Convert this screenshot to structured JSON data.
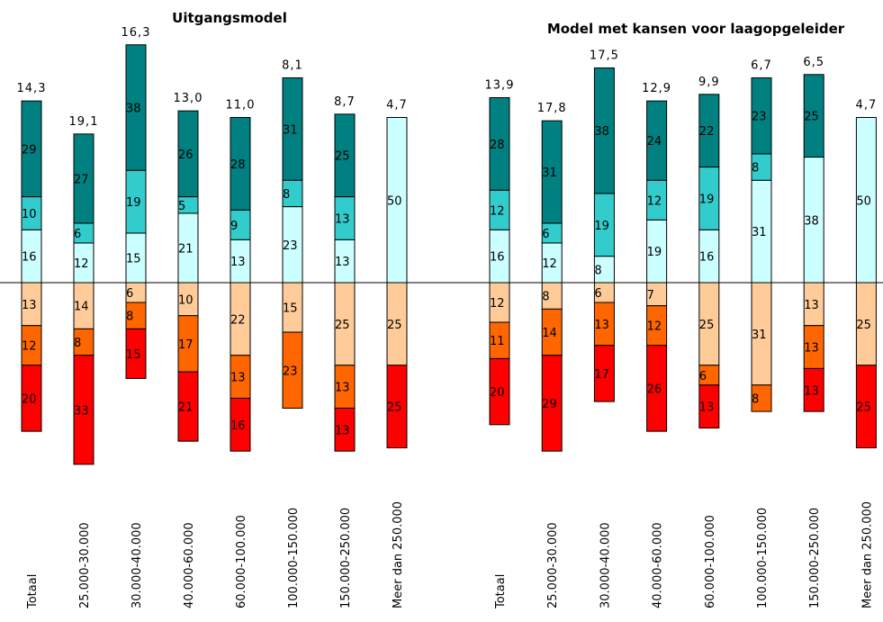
{
  "chart_data": [
    {
      "type": "diverging-stacked-bar",
      "title": "Uitgangsmodel",
      "categories": [
        "Totaal",
        "25.000-30.000",
        "30.000-40.000",
        "40.000-60.000",
        "60.000-100.000",
        "100.000-150.000",
        "150.000-250.000",
        "Meer dan 250.000"
      ],
      "scores": {
        "values": [
          14.3,
          19.1,
          16.3,
          13.0,
          11.0,
          8.1,
          8.7,
          4.7
        ],
        "value_labels": [
          "14,3",
          "19,1",
          "16,3",
          "13,0",
          "11,0",
          "8,1",
          "8,7",
          "4,7"
        ]
      },
      "series": [
        {
          "color": "#ccffff",
          "values": [
            16,
            12,
            15,
            21,
            13,
            23,
            13,
            50
          ]
        },
        {
          "color": "#33cccc",
          "values": [
            10,
            6,
            19,
            5,
            9,
            8,
            13,
            null
          ]
        },
        {
          "color": "#008080",
          "values": [
            29,
            27,
            38,
            26,
            28,
            31,
            25,
            null
          ]
        },
        {
          "color": "#ffcc99",
          "values": [
            -13,
            -14,
            -6,
            -10,
            -22,
            -15,
            -25,
            -25
          ],
          "value_labels": [
            "13",
            "14",
            "6",
            "10",
            "22",
            "15",
            "25",
            "25"
          ]
        },
        {
          "color": "#ff6600",
          "values": [
            -12,
            -8,
            -8,
            -17,
            -13,
            -23,
            -13,
            null
          ],
          "value_labels": [
            "12",
            "8",
            "8",
            "17",
            "13",
            "23",
            "13",
            null
          ]
        },
        {
          "color": "#ff0000",
          "values": [
            -20,
            -33,
            -15,
            -21,
            -16,
            null,
            -13,
            -25
          ],
          "value_labels": [
            "20",
            "33",
            "15",
            "21",
            "16",
            null,
            "13",
            "25"
          ]
        }
      ]
    },
    {
      "type": "diverging-stacked-bar",
      "title": "Model met kansen voor laagopgeleider",
      "categories": [
        "Totaal",
        "25.000-30.000",
        "30.000-40.000",
        "40.000-60.000",
        "60.000-100.000",
        "100.000-150.000",
        "150.000-250.000",
        "Meer dan 250.000"
      ],
      "scores": {
        "values": [
          13.9,
          17.8,
          17.5,
          12.9,
          9.9,
          6.7,
          6.5,
          4.7
        ],
        "value_labels": [
          "13,9",
          "17,8",
          "17,5",
          "12,9",
          "9,9",
          "6,7",
          "6,5",
          "4,7"
        ]
      },
      "series": [
        {
          "color": "#ccffff",
          "values": [
            16,
            12,
            8,
            19,
            16,
            31,
            38,
            50
          ]
        },
        {
          "color": "#33cccc",
          "values": [
            12,
            6,
            19,
            12,
            19,
            8,
            null,
            null
          ]
        },
        {
          "color": "#008080",
          "values": [
            28,
            31,
            38,
            24,
            22,
            23,
            25,
            null
          ]
        },
        {
          "color": "#ffcc99",
          "values": [
            -12,
            -8,
            -6,
            -7,
            -25,
            -31,
            -13,
            -25
          ],
          "value_labels": [
            "12",
            "8",
            "6",
            "7",
            "25",
            "31",
            "13",
            "25"
          ]
        },
        {
          "color": "#ff6600",
          "values": [
            -11,
            -14,
            -13,
            -12,
            -6,
            -8,
            -13,
            null
          ],
          "value_labels": [
            "11",
            "14",
            "13",
            "12",
            "6",
            "8",
            "13",
            null
          ]
        },
        {
          "color": "#ff0000",
          "values": [
            -20,
            -29,
            -17,
            -26,
            -13,
            null,
            -13,
            -25
          ],
          "value_labels": [
            "20",
            "29",
            "17",
            "26",
            "13",
            null,
            "13",
            "25"
          ]
        }
      ]
    }
  ]
}
